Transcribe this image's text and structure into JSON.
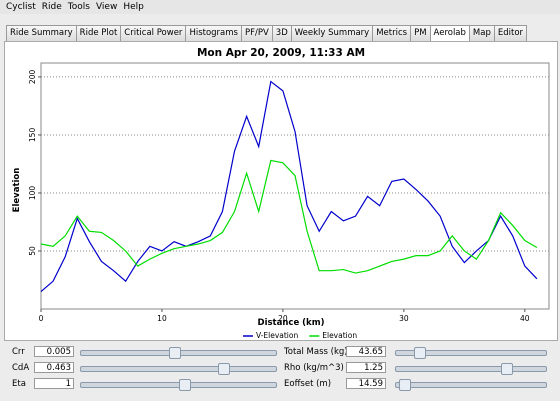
{
  "menu": [
    "Cyclist",
    "Ride",
    "Tools",
    "View",
    "Help"
  ],
  "tabs": [
    "Ride Summary",
    "Ride Plot",
    "Critical Power",
    "Histograms",
    "PF/PV",
    "3D",
    "Weekly Summary",
    "Metrics",
    "PM",
    "Aerolab",
    "Map",
    "Editor"
  ],
  "active_tab": "Aerolab",
  "chart_data": {
    "type": "line",
    "title": "Mon Apr 20, 2009, 11:33 AM",
    "x_label": "Distance (km)",
    "y_label": "Elevation",
    "x": [
      0,
      1,
      2,
      3,
      4,
      5,
      6,
      7,
      8,
      9,
      10,
      11,
      12,
      13,
      14,
      15,
      16,
      17,
      18,
      19,
      20,
      21,
      22,
      23,
      24,
      25,
      26,
      27,
      28,
      29,
      30,
      31,
      32,
      33,
      34,
      35,
      36,
      37,
      38,
      39,
      40,
      41
    ],
    "series": [
      {
        "name": "V-Elevation",
        "color": "#0000cc",
        "values": [
          15,
          24,
          45,
          78,
          58,
          41,
          33,
          24,
          41,
          54,
          50,
          58,
          54,
          58,
          63,
          84,
          136,
          166,
          140,
          196,
          188,
          153,
          89,
          67,
          84,
          76,
          80,
          97,
          89,
          110,
          112,
          103,
          93,
          80,
          54,
          40,
          50,
          59,
          80,
          63,
          37,
          26
        ]
      },
      {
        "name": "Elevation",
        "color": "#00dd00",
        "values": [
          56,
          54,
          63,
          80,
          67,
          66,
          59,
          50,
          37,
          43,
          48,
          52,
          54,
          56,
          59,
          66,
          84,
          117,
          84,
          128,
          126,
          115,
          67,
          33,
          33,
          34,
          31,
          33,
          37,
          41,
          43,
          46,
          46,
          50,
          63,
          50,
          43,
          59,
          83,
          72,
          59,
          53
        ]
      }
    ],
    "xlim": [
      0,
      42
    ],
    "xticks": [
      0,
      10,
      20,
      30,
      40
    ],
    "ylim": [
      0,
      212
    ],
    "yticks": [
      50,
      100,
      150,
      200
    ],
    "grid": true
  },
  "controls": [
    {
      "label": "Crr",
      "value": "0.005"
    },
    {
      "label": "CdA",
      "value": "0.463"
    },
    {
      "label": "Eta",
      "value": "1"
    },
    {
      "label": "Total Mass (kg)",
      "value": "43.65"
    },
    {
      "label": "Rho (kg/m^3)",
      "value": "1.25"
    },
    {
      "label": "Eoffset (m)",
      "value": "14.59"
    }
  ]
}
